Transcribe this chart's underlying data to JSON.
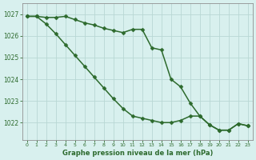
{
  "x": [
    0,
    1,
    2,
    3,
    4,
    5,
    6,
    7,
    8,
    9,
    10,
    11,
    12,
    13,
    14,
    15,
    16,
    17,
    18,
    19,
    20,
    21,
    22,
    23
  ],
  "line1_y": [
    1026.9,
    1026.9,
    1026.85,
    1026.85,
    1026.9,
    1026.75,
    1026.6,
    1026.5,
    1026.35,
    1026.25,
    1026.15,
    1026.3,
    1026.3,
    1025.45,
    1025.35,
    1024.0,
    1023.65,
    1022.9,
    1022.3,
    1021.9,
    1021.65,
    1021.65,
    1021.95,
    1021.85
  ],
  "line2_y": [
    1026.9,
    1026.9,
    1026.55,
    1026.1,
    1025.6,
    1025.1,
    1024.6,
    1024.1,
    1023.6,
    1023.1,
    1022.65,
    1022.3,
    1022.2,
    1022.1,
    1022.0,
    1022.0,
    1022.1,
    1022.3,
    1022.3,
    1021.9,
    1021.65,
    1021.65,
    1021.95,
    1021.85
  ],
  "bg_color": "#d8f0ee",
  "grid_color": "#b8d8d4",
  "line_color": "#2d6a2d",
  "marker": "D",
  "markersize": 2.5,
  "linewidth": 1.1,
  "ylabel_ticks": [
    1022,
    1023,
    1024,
    1025,
    1026,
    1027
  ],
  "xlabel": "Graphe pression niveau de la mer (hPa)",
  "ylim": [
    1021.2,
    1027.5
  ],
  "xlim": [
    -0.5,
    23.5
  ]
}
